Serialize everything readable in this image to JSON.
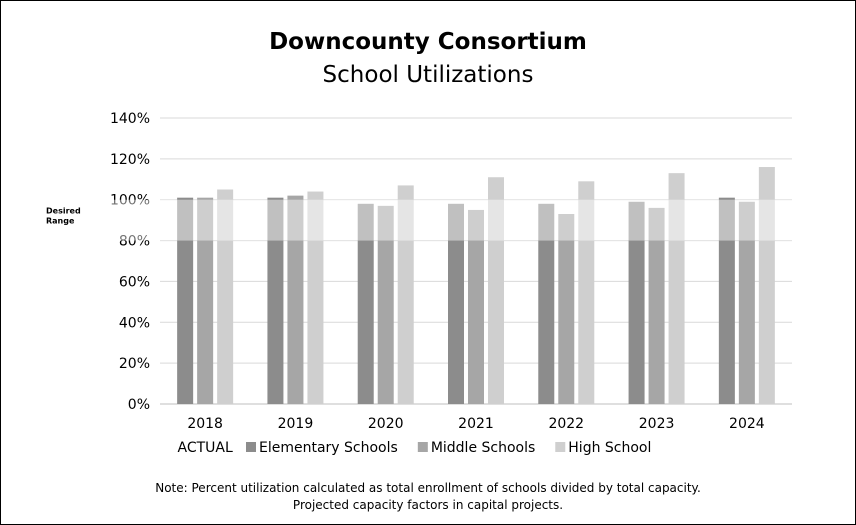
{
  "chart_data": {
    "type": "bar",
    "title": "Downcounty Consortium",
    "subtitle": "School Utilizations",
    "categories": [
      "2018",
      "2019",
      "2020",
      "2021",
      "2022",
      "2023",
      "2024"
    ],
    "category_sublabels": [
      "ACTUAL",
      "",
      "",
      "",
      "",
      "",
      ""
    ],
    "series": [
      {
        "name": "Elementary Schools",
        "color": "#8c8c8c",
        "values": [
          101,
          101,
          98,
          98,
          98,
          99,
          101
        ]
      },
      {
        "name": "Middle Schools",
        "color": "#a6a6a6",
        "values": [
          101,
          102,
          97,
          95,
          93,
          96,
          99
        ]
      },
      {
        "name": "High School",
        "color": "#cfcfcf",
        "values": [
          105,
          104,
          107,
          111,
          109,
          113,
          116
        ]
      }
    ],
    "ylim": [
      0,
      140
    ],
    "y_ticks": [
      "0%",
      "20%",
      "40%",
      "60%",
      "80%",
      "100%",
      "120%",
      "140%"
    ],
    "grid": true,
    "legend_position": "bottom",
    "band": {
      "label_line1": "Desired",
      "label_line2": "Range",
      "from": 80,
      "to": 100
    },
    "xlabel": "",
    "ylabel": ""
  },
  "note": {
    "line1": "Note:  Percent utilization calculated as total enrollment of schools divided by total capacity.",
    "line2": "Projected capacity factors in capital projects."
  }
}
